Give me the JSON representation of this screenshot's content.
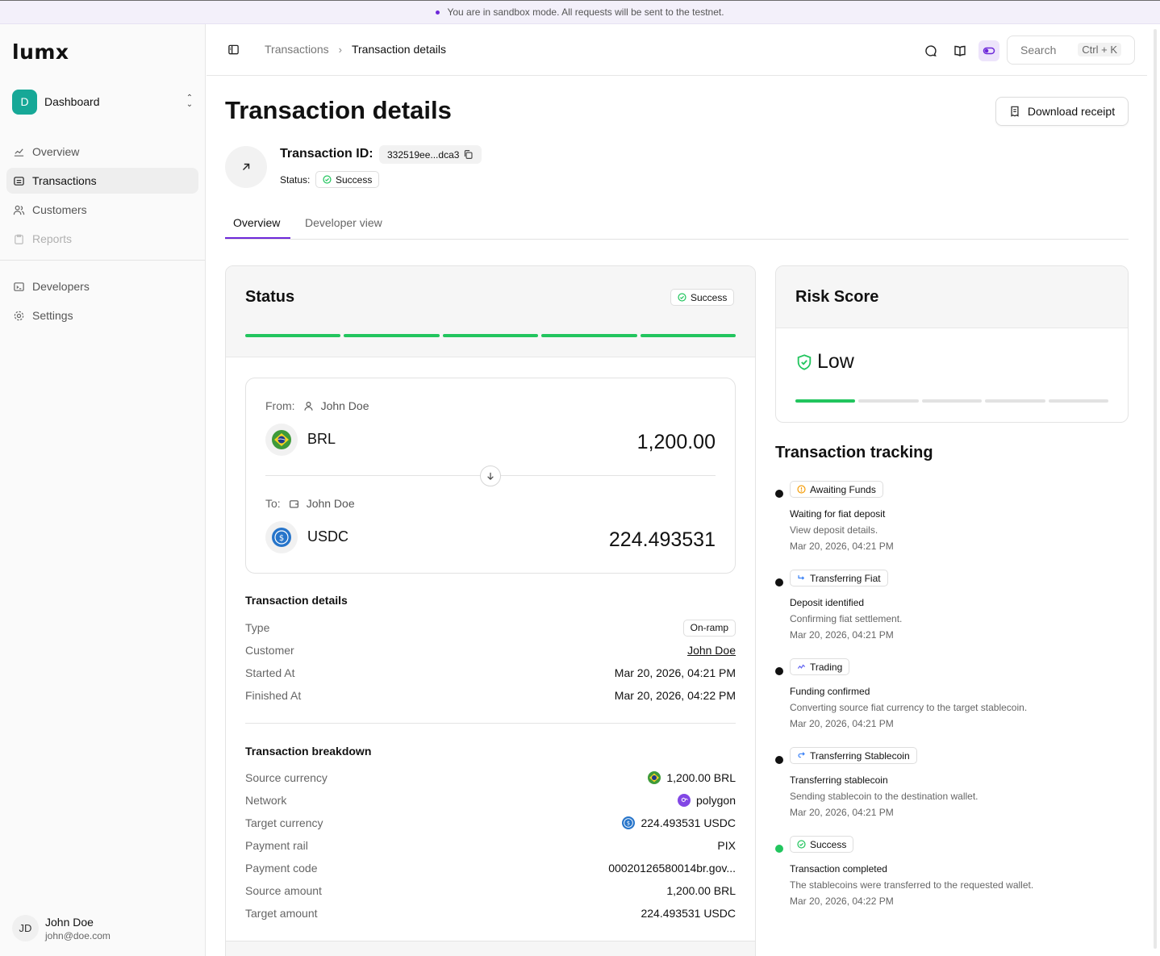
{
  "banner": {
    "text": "You are in sandbox mode. All requests will be sent to the testnet."
  },
  "sidebar": {
    "logo": "lumx",
    "org": {
      "initial": "D",
      "name": "Dashboard"
    },
    "nav": [
      {
        "label": "Overview",
        "icon": "chart-line-icon",
        "state": "normal"
      },
      {
        "label": "Transactions",
        "icon": "transactions-icon",
        "state": "active"
      },
      {
        "label": "Customers",
        "icon": "users-icon",
        "state": "normal"
      },
      {
        "label": "Reports",
        "icon": "clipboard-icon",
        "state": "disabled"
      }
    ],
    "nav2": [
      {
        "label": "Developers",
        "icon": "terminal-icon"
      },
      {
        "label": "Settings",
        "icon": "gear-icon"
      }
    ],
    "user": {
      "initials": "JD",
      "name": "John Doe",
      "email": "john@doe.com"
    }
  },
  "topbar": {
    "breadcrumb": [
      "Transactions",
      "Transaction details"
    ],
    "search_placeholder": "Search",
    "search_shortcut": "Ctrl + K"
  },
  "page": {
    "title": "Transaction details",
    "download_label": "Download receipt",
    "tx_id_label": "Transaction ID:",
    "tx_id": "332519ee...dca3",
    "status_label": "Status:",
    "status": "Success",
    "tabs": [
      "Overview",
      "Developer view"
    ]
  },
  "status_card": {
    "title": "Status",
    "badge": "Success",
    "progress_steps_total": 5,
    "progress_steps_done": 5,
    "from": {
      "label": "From:",
      "name": "John Doe",
      "currency": "BRL",
      "amount": "1,200.00"
    },
    "to": {
      "label": "To:",
      "name": "John Doe",
      "currency": "USDC",
      "amount": "224.493531"
    },
    "details": {
      "title": "Transaction details",
      "rows": [
        {
          "k": "Type",
          "v": "On-ramp"
        },
        {
          "k": "Customer",
          "v": "John Doe"
        },
        {
          "k": "Started At",
          "v": "Mar 20, 2026, 04:21 PM"
        },
        {
          "k": "Finished At",
          "v": "Mar 20, 2026, 04:22 PM"
        }
      ]
    },
    "breakdown": {
      "title": "Transaction breakdown",
      "rows": [
        {
          "k": "Source currency",
          "v": "1,200.00 BRL"
        },
        {
          "k": "Network",
          "v": "polygon"
        },
        {
          "k": "Target currency",
          "v": "224.493531 USDC"
        },
        {
          "k": "Payment rail",
          "v": "PIX"
        },
        {
          "k": "Payment code",
          "v": "00020126580014br.gov..."
        },
        {
          "k": "Source amount",
          "v": "1,200.00 BRL"
        },
        {
          "k": "Target amount",
          "v": "224.493531 USDC"
        }
      ]
    }
  },
  "risk": {
    "title": "Risk Score",
    "level": "Low",
    "level_step": 1,
    "steps_total": 5
  },
  "tracking": {
    "title": "Transaction tracking",
    "items": [
      {
        "badge": "Awaiting Funds",
        "icon": "clock-icon",
        "title": "Waiting for fiat deposit",
        "desc": "View deposit details.",
        "time": "Mar 20, 2026, 04:21 PM",
        "dot": "#111111"
      },
      {
        "badge": "Transferring Fiat",
        "icon": "arrow-turn-icon",
        "title": "Deposit identified",
        "desc": "Confirming fiat settlement.",
        "time": "Mar 20, 2026, 04:21 PM",
        "dot": "#111111"
      },
      {
        "badge": "Trading",
        "icon": "chart-wave-icon",
        "title": "Funding confirmed",
        "desc": "Converting source fiat currency to the target stablecoin.",
        "time": "Mar 20, 2026, 04:21 PM",
        "dot": "#111111"
      },
      {
        "badge": "Transferring Stablecoin",
        "icon": "arrow-return-icon",
        "title": "Transferring stablecoin",
        "desc": "Sending stablecoin to the destination wallet.",
        "time": "Mar 20, 2026, 04:21 PM",
        "dot": "#111111"
      },
      {
        "badge": "Success",
        "icon": "check-circle-icon",
        "title": "Transaction completed",
        "desc": "The stablecoins were transferred to the requested wallet.",
        "time": "Mar 20, 2026, 04:22 PM",
        "dot": "#22c55e"
      }
    ]
  },
  "colors": {
    "accent": "#6d28d9",
    "success": "#22c55e",
    "org_badge": "#16a897"
  }
}
